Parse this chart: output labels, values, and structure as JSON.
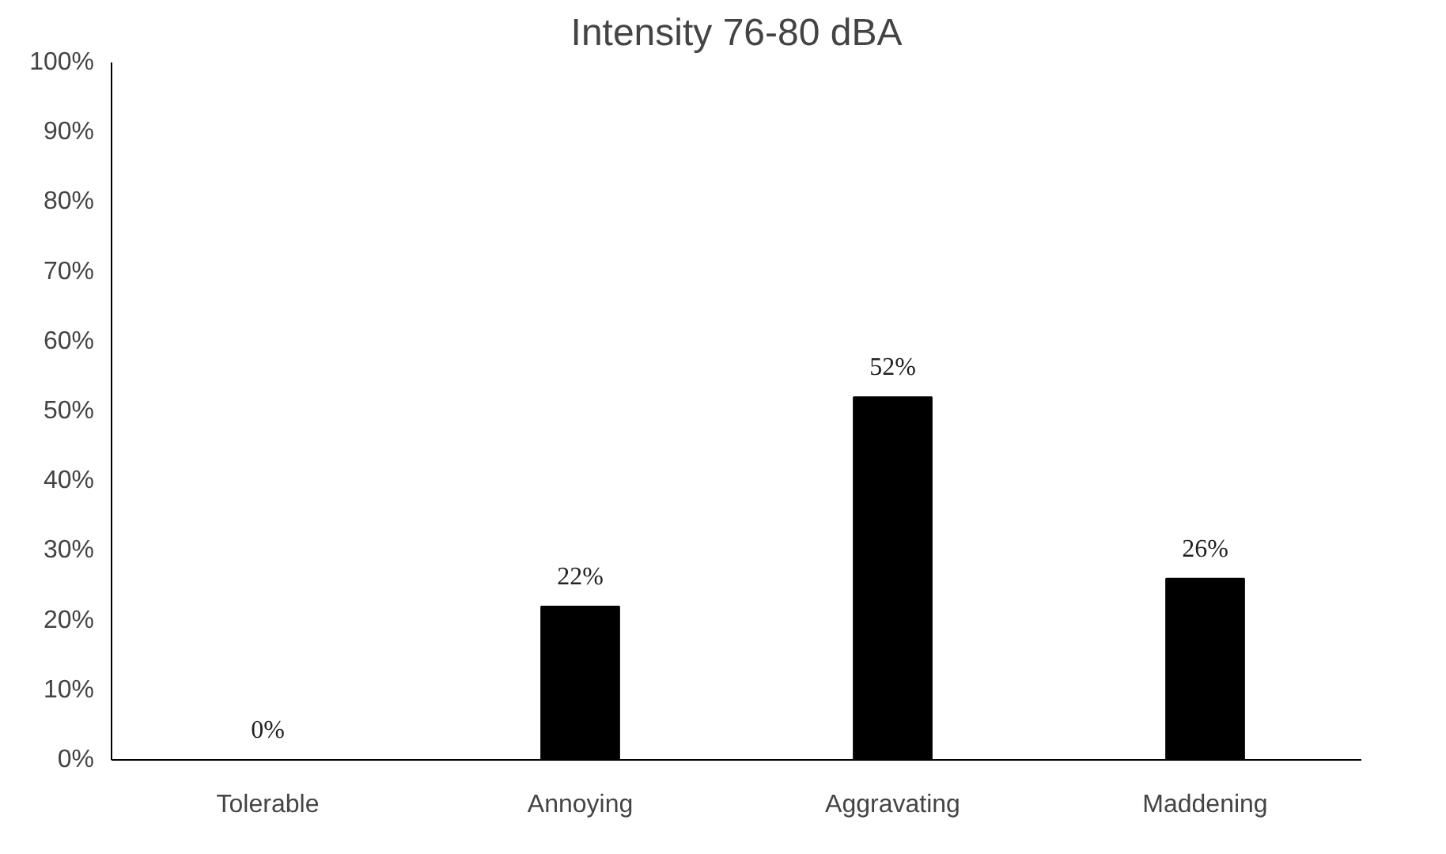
{
  "chart_data": {
    "type": "bar",
    "title": "Intensity 76-80 dBA",
    "categories": [
      "Tolerable",
      "Annoying",
      "Aggravating",
      "Maddening"
    ],
    "values": [
      0,
      22,
      52,
      26
    ],
    "value_labels": [
      "0%",
      "22%",
      "52%",
      "26%"
    ],
    "color": "#000000",
    "ylim": [
      0,
      100
    ],
    "yticks": [
      {
        "value": 0,
        "label": "0%"
      },
      {
        "value": 10,
        "label": "10%"
      },
      {
        "value": 20,
        "label": "20%"
      },
      {
        "value": 30,
        "label": "30%"
      },
      {
        "value": 40,
        "label": "40%"
      },
      {
        "value": 50,
        "label": "50%"
      },
      {
        "value": 60,
        "label": "60%"
      },
      {
        "value": 70,
        "label": "70%"
      },
      {
        "value": 80,
        "label": "80%"
      },
      {
        "value": 90,
        "label": "90%"
      },
      {
        "value": 100,
        "label": "100%"
      }
    ],
    "grid": false
  }
}
